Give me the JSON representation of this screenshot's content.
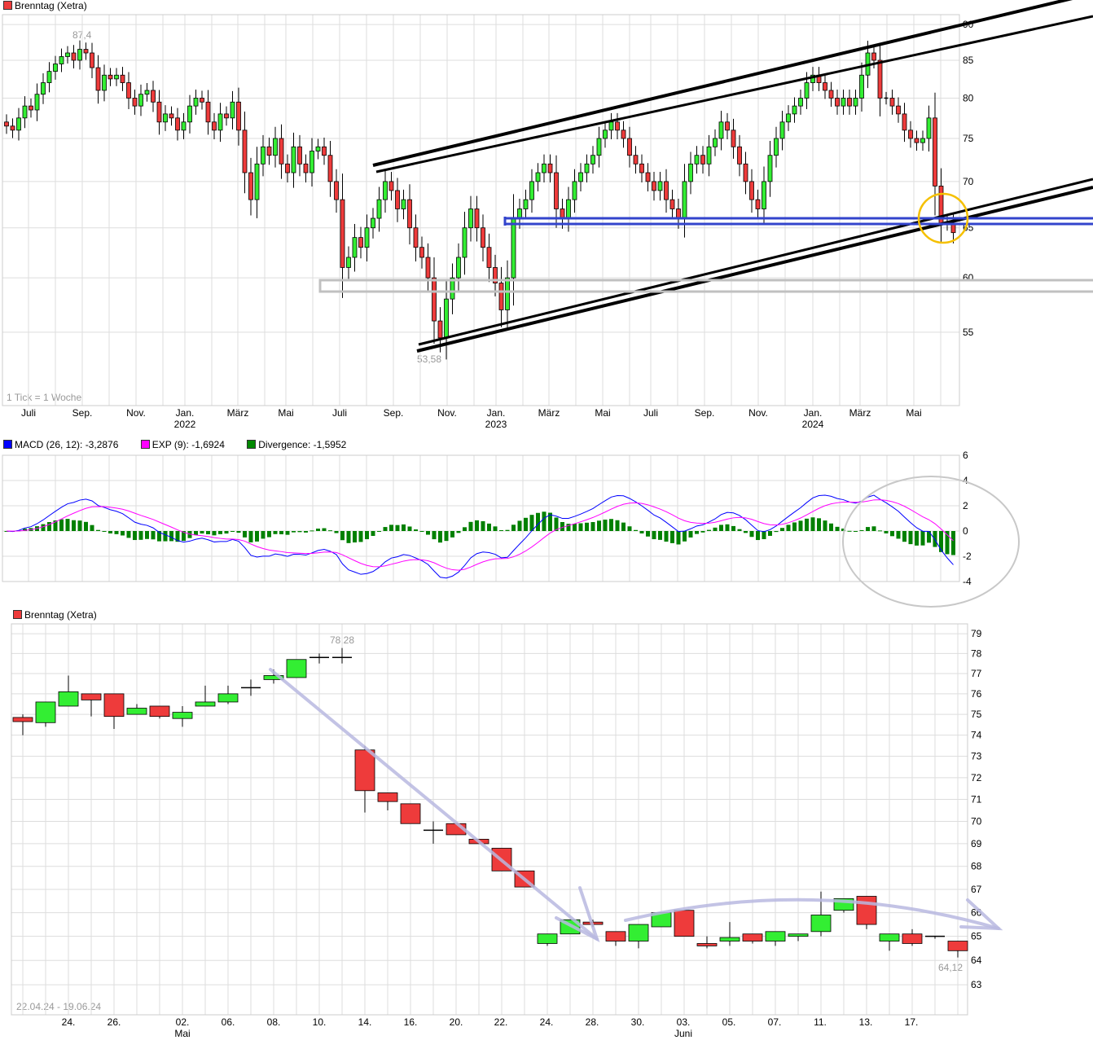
{
  "colors": {
    "up": "#33ee33",
    "down": "#ee3b3b",
    "macd": "#0000ff",
    "exp": "#ff00ff",
    "divergence": "#008000",
    "channel": "#000000",
    "support": "#3344cc",
    "zone": "#c0c0c0",
    "highlight": "#f5c000",
    "ellipse": "#c8c8c8",
    "arrow": "#b8b8e0"
  },
  "chart_data": [
    {
      "type": "candlestick",
      "title": "Brenntag (Xetra)",
      "scale": "log",
      "ylim": [
        53,
        90
      ],
      "yticks": [
        55,
        60,
        65,
        70,
        75,
        80,
        85,
        90
      ],
      "note": "1 Tick = 1 Woche",
      "xlabels": [
        [
          "Juli",
          ""
        ],
        [
          "Sep.",
          ""
        ],
        [
          "Nov.",
          ""
        ],
        [
          "Jan.",
          "2022"
        ],
        [
          "März",
          ""
        ],
        [
          "Mai",
          ""
        ],
        [
          "Juli",
          ""
        ],
        [
          "Sep.",
          ""
        ],
        [
          "Nov.",
          ""
        ],
        [
          "Jan.",
          "2023"
        ],
        [
          "März",
          ""
        ],
        [
          "Mai",
          ""
        ],
        [
          "Juli",
          ""
        ],
        [
          "Sep.",
          ""
        ],
        [
          "Nov.",
          ""
        ],
        [
          "Jan.",
          "2024"
        ],
        [
          "März",
          ""
        ],
        [
          "Mai",
          ""
        ]
      ],
      "high_label": "87,4",
      "low_label": "53,58",
      "close": [
        76.5,
        76,
        77.5,
        79,
        78.5,
        80.5,
        82,
        83.5,
        84.5,
        85.5,
        86,
        85,
        86.5,
        86,
        84,
        81,
        83,
        82.5,
        83,
        82,
        80,
        79,
        80.5,
        81,
        79.5,
        77,
        78,
        77.5,
        76,
        77,
        79,
        80,
        79.5,
        77,
        76,
        78,
        77.5,
        79.5,
        76,
        71,
        68,
        72,
        74,
        73,
        75,
        72,
        71,
        74,
        72,
        71,
        73.5,
        74,
        73,
        70,
        68,
        61,
        62,
        64,
        63,
        65,
        66,
        68,
        70,
        69,
        67,
        68,
        65,
        63,
        62,
        60,
        56,
        54.5,
        58,
        60,
        62,
        65,
        67,
        65,
        63,
        61,
        59.5,
        57,
        60,
        66,
        67,
        68,
        70,
        71,
        72,
        71,
        67,
        66,
        68,
        70,
        71,
        72,
        73,
        75,
        76,
        77,
        76,
        75,
        73,
        72,
        71,
        70,
        69,
        70,
        68,
        67,
        66,
        70,
        72,
        73,
        72,
        74,
        75,
        77,
        76,
        74,
        72,
        70,
        68,
        67,
        70,
        73,
        75,
        77,
        78,
        79,
        80,
        82,
        83,
        82,
        81,
        80,
        79,
        80,
        79,
        80,
        83,
        86,
        85,
        80,
        80,
        79,
        78,
        76,
        75,
        74.5,
        75,
        77.5,
        69.5,
        65.5,
        65.5,
        64.5
      ]
    },
    {
      "type": "macd",
      "legend": [
        {
          "name": "MACD (26, 12): -3,2876"
        },
        {
          "name": "EXP (9): -1,6924"
        },
        {
          "name": "Divergence: -1,5952"
        }
      ],
      "yticks": [
        6,
        4,
        2,
        0,
        -2,
        -4
      ],
      "ylim": [
        -4.5,
        6
      ]
    },
    {
      "type": "candlestick",
      "title": "Brenntag (Xetra)",
      "scale": "log",
      "ylim": [
        62.5,
        79.5
      ],
      "yticks": [
        79,
        78,
        77,
        76,
        75,
        74,
        73,
        72,
        71,
        70,
        69,
        68,
        67,
        66,
        65,
        64,
        63
      ],
      "range": "22.04.24 - 19.06.24",
      "high_label": "78,28",
      "low_label": "64,12",
      "xlabels": [
        [
          "24.",
          ""
        ],
        [
          "26.",
          ""
        ],
        [
          "02.",
          "Mai"
        ],
        [
          "06.",
          ""
        ],
        [
          "08.",
          ""
        ],
        [
          "10.",
          ""
        ],
        [
          "14.",
          ""
        ],
        [
          "16.",
          ""
        ],
        [
          "20.",
          ""
        ],
        [
          "22.",
          ""
        ],
        [
          "24.",
          ""
        ],
        [
          "28.",
          ""
        ],
        [
          "30.",
          ""
        ],
        [
          "03.",
          "Juni"
        ],
        [
          "05.",
          ""
        ],
        [
          "07.",
          ""
        ],
        [
          "11.",
          ""
        ],
        [
          "13.",
          ""
        ],
        [
          "17.",
          ""
        ]
      ],
      "ohlc": [
        [
          74.85,
          75.0,
          74.0,
          74.65
        ],
        [
          74.6,
          75.6,
          74.4,
          75.6
        ],
        [
          75.4,
          76.9,
          75.4,
          76.1
        ],
        [
          76.0,
          76.0,
          74.9,
          75.7
        ],
        [
          76.0,
          76.0,
          74.3,
          74.9
        ],
        [
          75.0,
          75.5,
          75.0,
          75.3
        ],
        [
          75.4,
          75.4,
          74.8,
          74.9
        ],
        [
          74.8,
          75.4,
          74.4,
          75.1
        ],
        [
          75.4,
          76.4,
          75.4,
          75.6
        ],
        [
          75.6,
          76.4,
          75.5,
          76.0
        ],
        [
          76.3,
          76.7,
          75.9,
          76.3
        ],
        [
          76.7,
          77.2,
          76.5,
          76.9
        ],
        [
          76.8,
          77.7,
          76.8,
          77.7
        ],
        [
          77.8,
          78.0,
          77.5,
          77.8
        ],
        [
          77.8,
          78.28,
          77.5,
          77.8
        ],
        [
          73.3,
          73.5,
          70.4,
          71.4
        ],
        [
          71.3,
          71.3,
          70.5,
          70.9
        ],
        [
          70.8,
          70.8,
          69.9,
          69.9
        ],
        [
          69.6,
          70.0,
          69.0,
          69.6
        ],
        [
          69.9,
          69.9,
          69.4,
          69.4
        ],
        [
          69.2,
          69.2,
          69.0,
          69.0
        ],
        [
          68.8,
          68.8,
          67.8,
          67.8
        ],
        [
          67.8,
          67.8,
          67.1,
          67.1
        ],
        [
          64.7,
          65.1,
          64.6,
          65.1
        ],
        [
          65.1,
          65.7,
          65.1,
          65.7
        ],
        [
          65.6,
          65.7,
          65.4,
          65.5
        ],
        [
          65.2,
          65.2,
          64.6,
          64.8
        ],
        [
          64.8,
          65.5,
          64.5,
          65.5
        ],
        [
          65.4,
          66.0,
          65.4,
          66.0
        ],
        [
          66.1,
          66.1,
          65.0,
          65.0
        ],
        [
          64.7,
          65.0,
          64.5,
          64.6
        ],
        [
          64.8,
          65.6,
          64.6,
          64.95
        ],
        [
          65.1,
          65.1,
          64.7,
          64.8
        ],
        [
          64.8,
          65.2,
          64.6,
          65.2
        ],
        [
          65.0,
          65.1,
          64.8,
          65.1
        ],
        [
          65.2,
          66.9,
          65.0,
          65.9
        ],
        [
          66.1,
          66.6,
          66.0,
          66.6
        ],
        [
          66.7,
          66.7,
          65.3,
          65.5
        ],
        [
          64.8,
          65.1,
          64.4,
          65.1
        ],
        [
          65.1,
          65.3,
          64.6,
          64.7
        ],
        [
          65.0,
          65.0,
          64.9,
          65.0
        ],
        [
          64.8,
          64.8,
          64.12,
          64.4
        ]
      ]
    }
  ]
}
